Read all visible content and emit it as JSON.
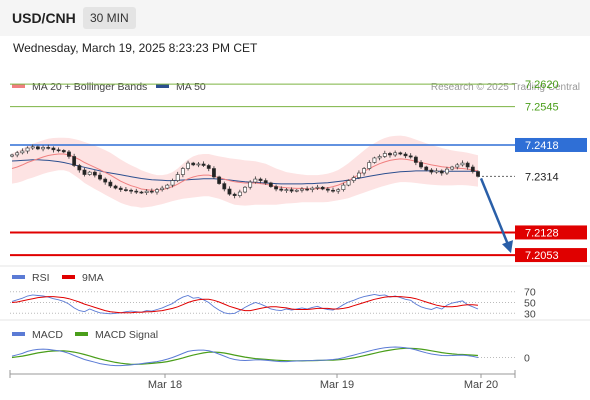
{
  "header": {
    "symbol": "USD/CNH",
    "timeframe": "30 MIN"
  },
  "datetime": "Wednesday, March 19, 2025 8:23:23 PM CET",
  "chart_data": [
    {
      "type": "candlestick",
      "panel": "price",
      "legend": [
        {
          "label": "MA 20 + Bollinger Bands",
          "color": "#f08080"
        },
        {
          "label": "MA 50",
          "color": "#2c4f8f"
        }
      ],
      "credit": "Research © 2025 Trading Central",
      "x_tick_labels": [
        "Mar 18",
        "Mar 19",
        "Mar 20"
      ],
      "ylim": [
        7.203,
        7.266
      ],
      "levels": [
        {
          "value": 7.262,
          "label": "7.2620",
          "color": "#7cb342",
          "kind": "resistance"
        },
        {
          "value": 7.2545,
          "label": "7.2545",
          "color": "#7cb342",
          "kind": "resistance"
        },
        {
          "value": 7.2418,
          "label": "7.2418",
          "color": "#2f6fd6",
          "kind": "pivot"
        },
        {
          "value": 7.2314,
          "label": "7.2314",
          "color": "#222222",
          "kind": "last"
        },
        {
          "value": 7.2128,
          "label": "7.2128",
          "color": "#e00000",
          "kind": "support"
        },
        {
          "value": 7.2053,
          "label": "7.2053",
          "color": "#e00000",
          "kind": "support"
        }
      ],
      "close": [
        7.2385,
        7.2392,
        7.2398,
        7.2408,
        7.2412,
        7.2405,
        7.241,
        7.2408,
        7.2402,
        7.24,
        7.2395,
        7.238,
        7.235,
        7.2335,
        7.232,
        7.2328,
        7.2318,
        7.2305,
        7.2295,
        7.2282,
        7.2275,
        7.227,
        7.2268,
        7.2265,
        7.2262,
        7.226,
        7.2265,
        7.2262,
        7.227,
        7.2275,
        7.2285,
        7.23,
        7.232,
        7.234,
        7.2358,
        7.2352,
        7.2355,
        7.235,
        7.234,
        7.2312,
        7.229,
        7.2272,
        7.2255,
        7.225,
        7.2262,
        7.2278,
        7.2295,
        7.2305,
        7.23,
        7.2292,
        7.228,
        7.2272,
        7.2268,
        7.227,
        7.2265,
        7.2268,
        7.2272,
        7.227,
        7.2275,
        7.2278,
        7.2272,
        7.2268,
        7.2265,
        7.227,
        7.2285,
        7.23,
        7.231,
        7.2325,
        7.234,
        7.236,
        7.2375,
        7.238,
        7.239,
        7.2385,
        7.2392,
        7.2388,
        7.2382,
        7.2378,
        7.236,
        7.2345,
        7.2335,
        7.2328,
        7.2332,
        7.2325,
        7.2338,
        7.2345,
        7.2352,
        7.2358,
        7.2345,
        7.233,
        7.2314
      ],
      "ma20": [
        7.234,
        7.2345,
        7.2352,
        7.236,
        7.2366,
        7.2372,
        7.2378,
        7.2383,
        7.2386,
        7.2388,
        7.2388,
        7.2385,
        7.2378,
        7.237,
        7.236,
        7.2352,
        7.2344,
        7.2336,
        7.2327,
        7.2318,
        7.2308,
        7.2298,
        7.229,
        7.2283,
        7.2278,
        7.2272,
        7.227,
        7.2268,
        7.2268,
        7.227,
        7.2274,
        7.228,
        7.2288,
        7.2298,
        7.2306,
        7.2312,
        7.2316,
        7.2318,
        7.2318,
        7.2314,
        7.231,
        7.2305,
        7.23,
        7.2296,
        7.2294,
        7.2292,
        7.2292,
        7.2292,
        7.229,
        7.2288,
        7.2284,
        7.228,
        7.2278,
        7.2276,
        7.2275,
        7.2274,
        7.2274,
        7.2273,
        7.2273,
        7.2273,
        7.2274,
        7.2276,
        7.228,
        7.2285,
        7.2292,
        7.23,
        7.231,
        7.232,
        7.233,
        7.234,
        7.2348,
        7.2356,
        7.2362,
        7.2367,
        7.237,
        7.2372,
        7.2371,
        7.2368,
        7.2364,
        7.236,
        7.2356,
        7.2352,
        7.2349,
        7.2346,
        7.2344,
        7.2342,
        7.2341,
        7.234,
        7.2338,
        7.2335,
        7.2332
      ],
      "ma50": [
        7.2365,
        7.2366,
        7.2367,
        7.2368,
        7.2369,
        7.2369,
        7.2368,
        7.2367,
        7.2365,
        7.2363,
        7.236,
        7.2356,
        7.2352,
        7.2348,
        7.2344,
        7.234,
        7.2336,
        7.2332,
        7.2328,
        7.2325,
        7.2322,
        7.2319,
        7.2316,
        7.2313,
        7.231,
        7.2307,
        7.2305,
        7.2303,
        7.2302,
        7.2301,
        7.23,
        7.23,
        7.2301,
        7.2302,
        7.2303,
        7.2304,
        7.2305,
        7.2306,
        7.2306,
        7.2306,
        7.2305,
        7.2304,
        7.2302,
        7.23,
        7.2298,
        7.2296,
        7.2295,
        7.2294,
        7.2293,
        7.2292,
        7.2291,
        7.229,
        7.2289,
        7.2289,
        7.2289,
        7.2289,
        7.2289,
        7.229,
        7.229,
        7.2291,
        7.2292,
        7.2293,
        7.2295,
        7.2297,
        7.2299,
        7.2302,
        7.2305,
        7.2308,
        7.2311,
        7.2314,
        7.2317,
        7.232,
        7.2323,
        7.2325,
        7.2327,
        7.2329,
        7.233,
        7.2331,
        7.2332,
        7.2332,
        7.2332,
        7.2332,
        7.2331,
        7.2331,
        7.2331,
        7.2331,
        7.2331,
        7.2331,
        7.2331,
        7.2331,
        7.2331
      ],
      "bb_width": [
        0.005,
        0.0052,
        0.0054,
        0.0055,
        0.0056,
        0.0056,
        0.0056,
        0.0056,
        0.0055,
        0.0054,
        0.0054,
        0.0056,
        0.006,
        0.0064,
        0.0068,
        0.007,
        0.0072,
        0.0073,
        0.0074,
        0.0074,
        0.0073,
        0.0072,
        0.007,
        0.0068,
        0.0065,
        0.0062,
        0.0058,
        0.0054,
        0.005,
        0.0048,
        0.0047,
        0.0048,
        0.0052,
        0.0058,
        0.0064,
        0.0068,
        0.007,
        0.007,
        0.007,
        0.007,
        0.007,
        0.0072,
        0.0074,
        0.0076,
        0.0076,
        0.0075,
        0.0074,
        0.0072,
        0.007,
        0.0068,
        0.0064,
        0.006,
        0.0056,
        0.0052,
        0.005,
        0.0048,
        0.0046,
        0.0045,
        0.0045,
        0.0045,
        0.0046,
        0.0047,
        0.0048,
        0.005,
        0.0054,
        0.0058,
        0.0062,
        0.0066,
        0.007,
        0.0074,
        0.0076,
        0.0078,
        0.0079,
        0.0079,
        0.0078,
        0.0077,
        0.0076,
        0.0074,
        0.0072,
        0.007,
        0.0068,
        0.0066,
        0.0064,
        0.0062,
        0.006,
        0.0058,
        0.0056,
        0.0055,
        0.0054,
        0.0053,
        0.0052
      ],
      "forecast": {
        "from": 7.2314,
        "to": 7.2053
      }
    },
    {
      "type": "line",
      "panel": "rsi",
      "legend": [
        {
          "label": "RSI",
          "color": "#5b7bd5"
        },
        {
          "label": "9MA",
          "color": "#e00000"
        }
      ],
      "ylim": [
        25,
        75
      ],
      "y_tick_labels": [
        "70",
        "50",
        "30"
      ],
      "y_ticks": [
        70,
        50,
        30
      ],
      "rsi": [
        52,
        55,
        58,
        62,
        64,
        63,
        62,
        60,
        57,
        55,
        52,
        47,
        40,
        35,
        33,
        38,
        34,
        31,
        30,
        29,
        30,
        31,
        33,
        34,
        33,
        32,
        35,
        34,
        37,
        40,
        44,
        48,
        55,
        60,
        63,
        58,
        59,
        55,
        50,
        42,
        36,
        31,
        29,
        30,
        35,
        41,
        46,
        50,
        47,
        43,
        38,
        36,
        35,
        38,
        36,
        38,
        40,
        38,
        41,
        43,
        39,
        37,
        36,
        40,
        46,
        51,
        54,
        58,
        61,
        63,
        65,
        63,
        64,
        60,
        62,
        59,
        56,
        54,
        47,
        42,
        39,
        37,
        41,
        38,
        45,
        49,
        51,
        53,
        46,
        42,
        38
      ],
      "rsi_ma": [
        50,
        51,
        53,
        55,
        57,
        59,
        60,
        61,
        61,
        60,
        59,
        57,
        54,
        51,
        47,
        44,
        41,
        38,
        35,
        33,
        32,
        31,
        31,
        31,
        32,
        32,
        33,
        33,
        34,
        35,
        37,
        39,
        42,
        46,
        50,
        53,
        55,
        56,
        56,
        54,
        51,
        47,
        43,
        40,
        37,
        35,
        35,
        37,
        39,
        41,
        42,
        42,
        41,
        40,
        38,
        37,
        37,
        37,
        38,
        39,
        39,
        39,
        38,
        38,
        39,
        41,
        44,
        47,
        50,
        53,
        56,
        58,
        60,
        61,
        61,
        61,
        60,
        59,
        57,
        54,
        51,
        48,
        45,
        43,
        42,
        42,
        43,
        45,
        46,
        46,
        45
      ]
    },
    {
      "type": "line",
      "panel": "macd",
      "legend": [
        {
          "label": "MACD",
          "color": "#5b7bd5"
        },
        {
          "label": "MACD Signal",
          "color": "#4a9e1a"
        }
      ],
      "y_tick_labels": [
        "0"
      ],
      "y_ticks": [
        0
      ],
      "ylim": [
        -0.001,
        0.001
      ],
      "macd": [
        0.0001,
        0.0002,
        0.0003,
        0.00045,
        0.00055,
        0.0006,
        0.00062,
        0.0006,
        0.00055,
        0.0005,
        0.00042,
        0.0003,
        0.00015,
        0.0,
        -0.00015,
        -0.00025,
        -0.00035,
        -0.00045,
        -0.00052,
        -0.00058,
        -0.0006,
        -0.0006,
        -0.00058,
        -0.00055,
        -0.0005,
        -0.00045,
        -0.0004,
        -0.00035,
        -0.0003,
        -0.00022,
        -0.00012,
        0.0,
        0.00015,
        0.0003,
        0.00045,
        0.00052,
        0.00055,
        0.00055,
        0.0005,
        0.0004,
        0.00025,
        0.0001,
        -5e-05,
        -0.00015,
        -0.0002,
        -0.00022,
        -0.0002,
        -0.00018,
        -0.00018,
        -0.0002,
        -0.00024,
        -0.00028,
        -0.0003,
        -0.0003,
        -0.00028,
        -0.00026,
        -0.00024,
        -0.00023,
        -0.00022,
        -0.0002,
        -0.0002,
        -0.00018,
        -0.00015,
        -0.0001,
        -2e-05,
        8e-05,
        0.00018,
        0.00028,
        0.00038,
        0.00048,
        0.00058,
        0.00066,
        0.00072,
        0.00076,
        0.00078,
        0.00076,
        0.00072,
        0.00066,
        0.00056,
        0.00045,
        0.00035,
        0.00026,
        0.0002,
        0.00015,
        0.00014,
        0.00015,
        0.00017,
        0.00018,
        0.00014,
        8e-05,
        0.0
      ],
      "signal": [
        0.0,
        5e-05,
        0.0001,
        0.00018,
        0.00026,
        0.00034,
        0.0004,
        0.00045,
        0.00048,
        0.0005,
        0.00049,
        0.00046,
        0.0004,
        0.00032,
        0.00022,
        0.00012,
        0.0,
        -0.0001,
        -0.0002,
        -0.00028,
        -0.00036,
        -0.00042,
        -0.00047,
        -0.0005,
        -0.0005,
        -0.00049,
        -0.00047,
        -0.00044,
        -0.0004,
        -0.00036,
        -0.0003,
        -0.00022,
        -0.00013,
        -3e-05,
        8e-05,
        0.00018,
        0.00027,
        0.00034,
        0.00039,
        0.0004,
        0.00038,
        0.00033,
        0.00026,
        0.00018,
        0.0001,
        3e-05,
        -3e-05,
        -8e-05,
        -0.00011,
        -0.00014,
        -0.00017,
        -0.0002,
        -0.00022,
        -0.00024,
        -0.00025,
        -0.00025,
        -0.00025,
        -0.00024,
        -0.00023,
        -0.00022,
        -0.00021,
        -0.0002,
        -0.00019,
        -0.00017,
        -0.00014,
        -9e-05,
        -3e-05,
        5e-05,
        0.00013,
        0.00022,
        0.00031,
        0.0004,
        0.00048,
        0.00055,
        0.00061,
        0.00065,
        0.00068,
        0.00068,
        0.00066,
        0.00062,
        0.00056,
        0.0005,
        0.00043,
        0.00036,
        0.00031,
        0.00027,
        0.00024,
        0.00022,
        0.0002,
        0.00018,
        0.00015
      ]
    }
  ]
}
